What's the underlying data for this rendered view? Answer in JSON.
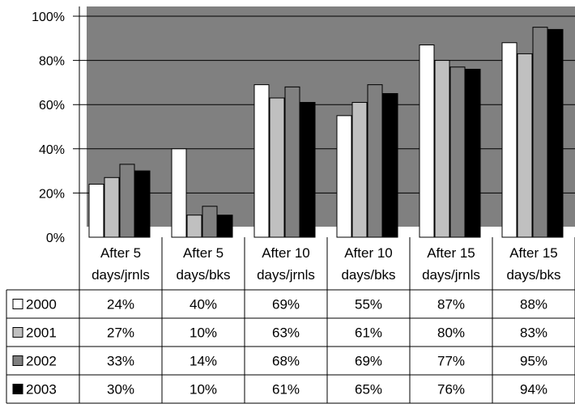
{
  "chart_data": {
    "type": "bar",
    "categories": [
      [
        "After 5",
        "days/jrnls"
      ],
      [
        "After 5",
        "days/bks"
      ],
      [
        "After 10",
        "days/jrnls"
      ],
      [
        "After 10",
        "days/bks"
      ],
      [
        "After 15",
        "days/jrnls"
      ],
      [
        "After 15",
        "days/bks"
      ]
    ],
    "series": [
      {
        "name": "2000",
        "color": "#ffffff",
        "values": [
          24,
          40,
          69,
          55,
          87,
          88
        ]
      },
      {
        "name": "2001",
        "color": "#c0c0c0",
        "values": [
          27,
          10,
          63,
          61,
          80,
          83
        ]
      },
      {
        "name": "2002",
        "color": "#808080",
        "values": [
          33,
          14,
          68,
          69,
          77,
          95
        ]
      },
      {
        "name": "2003",
        "color": "#000000",
        "values": [
          30,
          10,
          61,
          65,
          76,
          94
        ]
      }
    ],
    "table_values": [
      [
        "24%",
        "40%",
        "69%",
        "55%",
        "87%",
        "88%"
      ],
      [
        "27%",
        "10%",
        "63%",
        "61%",
        "80%",
        "83%"
      ],
      [
        "33%",
        "14%",
        "68%",
        "69%",
        "77%",
        "95%"
      ],
      [
        "30%",
        "10%",
        "61%",
        "65%",
        "76%",
        "94%"
      ]
    ],
    "y_tick_labels": [
      "0%",
      "20%",
      "40%",
      "60%",
      "80%",
      "100%"
    ],
    "ylim": [
      0,
      100
    ],
    "grid": true,
    "legend": "data-table-left",
    "plot_background": "#808080"
  }
}
